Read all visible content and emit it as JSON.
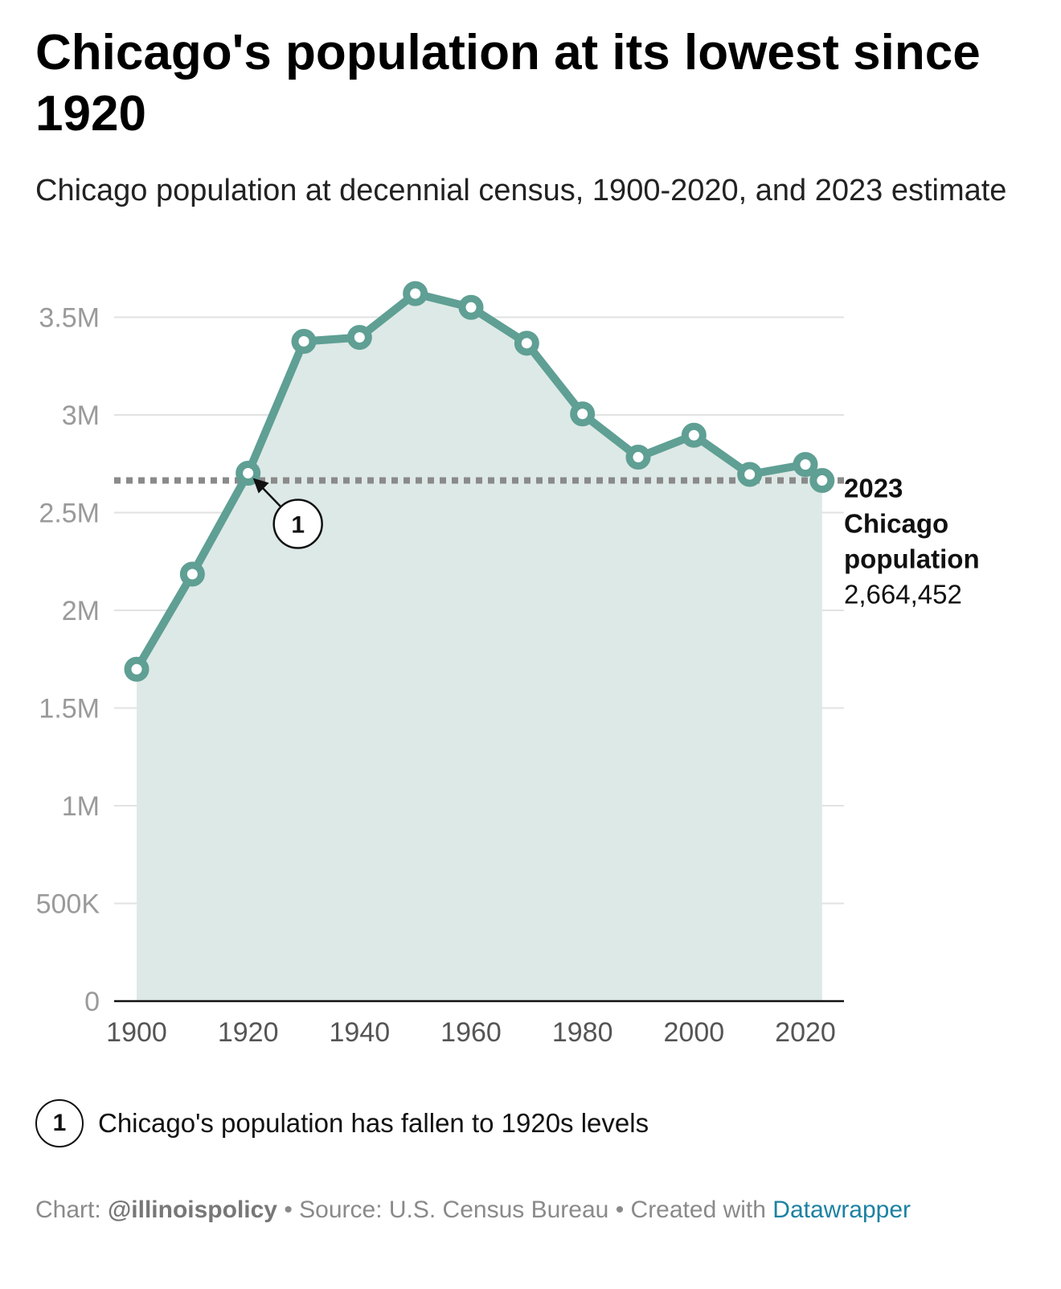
{
  "title": "Chicago's population at its lowest since 1920",
  "subtitle": "Chicago population at decennial census, 1900-2020, and 2023 estimate",
  "colors": {
    "line": "#5f9f94",
    "area": "#dde9e6",
    "grid": "#e2e2e2",
    "reference_line": "#8a8a8a",
    "axis_text": "#9a9a9a",
    "link": "#1d81a2"
  },
  "chart_data": {
    "type": "area",
    "title": "Chicago's population at its lowest since 1920",
    "xlabel": "",
    "ylabel": "",
    "xlim": [
      1895,
      2030
    ],
    "ylim": [
      0,
      3700000
    ],
    "grid": true,
    "x_ticks": [
      1900,
      1920,
      1940,
      1960,
      1980,
      2000,
      2020
    ],
    "y_ticks": [
      0,
      500000,
      1000000,
      1500000,
      2000000,
      2500000,
      3000000,
      3500000
    ],
    "y_tick_labels": [
      "0",
      "500K",
      "1M",
      "1.5M",
      "2M",
      "2.5M",
      "3M",
      "3.5M"
    ],
    "series": [
      {
        "name": "Chicago population",
        "x": [
          1900,
          1910,
          1920,
          1930,
          1940,
          1950,
          1960,
          1970,
          1980,
          1990,
          2000,
          2010,
          2020,
          2023
        ],
        "values": [
          1698575,
          2185283,
          2701705,
          3376438,
          3396808,
          3620962,
          3550404,
          3366957,
          3005072,
          2783726,
          2896016,
          2695598,
          2746388,
          2664452
        ]
      }
    ],
    "reference_line": {
      "value": 2664452,
      "label_year": "2023",
      "label_name": "Chicago population",
      "label_value": "2,664,452"
    },
    "annotations": [
      {
        "id": "1",
        "x": 1920,
        "y": 2701705,
        "text": "Chicago's population has fallen to 1920s levels"
      }
    ]
  },
  "notes": [
    {
      "badge": "1",
      "text": "Chicago's population has fallen to 1920s levels"
    }
  ],
  "footer": {
    "chart_prefix": "Chart: ",
    "chart_credit": "@illinoispolicy",
    "source": " • Source: U.S. Census Bureau • Created with ",
    "tool": "Datawrapper"
  }
}
